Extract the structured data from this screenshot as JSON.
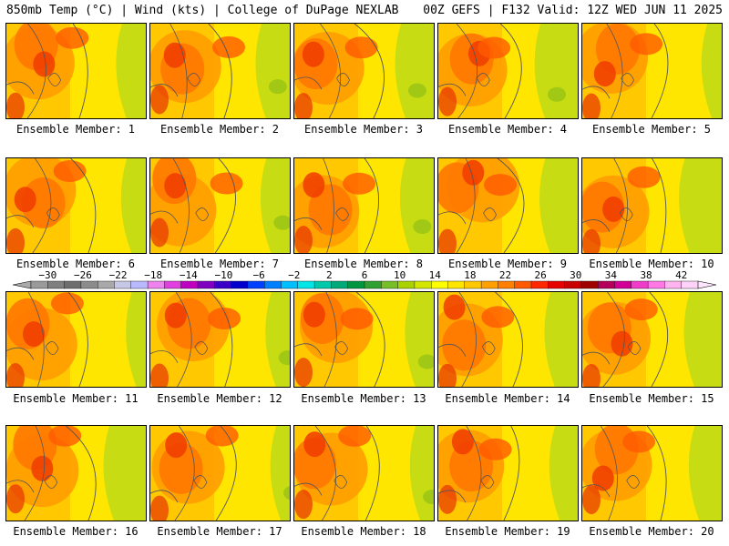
{
  "header": {
    "left": "850mb Temp (°C) | Wind (kts) | College of DuPage NEXLAB",
    "right": "00Z GEFS | F132 Valid: 12Z WED JUN 11 2025"
  },
  "colorbar": {
    "labels": [
      "−30",
      "−26",
      "−22",
      "−18",
      "−14",
      "−10",
      "−6",
      "−2",
      "2",
      "6",
      "10",
      "14",
      "18",
      "22",
      "26",
      "30",
      "34",
      "38",
      "42"
    ],
    "colors": [
      "#9a9a9a",
      "#808080",
      "#6e6e6e",
      "#8c8c8c",
      "#a9a9a9",
      "#c7c7e6",
      "#b9b9ff",
      "#ee82ee",
      "#e040e0",
      "#c000c0",
      "#8000c0",
      "#3b00c8",
      "#0000cd",
      "#0040ff",
      "#0080ff",
      "#00bfff",
      "#00e5e5",
      "#00c8aa",
      "#00aa78",
      "#009640",
      "#30a030",
      "#78be28",
      "#aad200",
      "#d2e600",
      "#ffff00",
      "#ffe600",
      "#ffc800",
      "#ffa000",
      "#ff8000",
      "#ff5a00",
      "#ff2800",
      "#e60000",
      "#c80000",
      "#a00000",
      "#b4005a",
      "#d20096",
      "#f03cc8",
      "#ff78e6",
      "#ffb4f0",
      "#ffd2fa"
    ]
  },
  "members": [
    {
      "label": "Ensemble Member: 1"
    },
    {
      "label": "Ensemble Member: 2"
    },
    {
      "label": "Ensemble Member: 3"
    },
    {
      "label": "Ensemble Member: 4"
    },
    {
      "label": "Ensemble Member: 5"
    },
    {
      "label": "Ensemble Member: 6"
    },
    {
      "label": "Ensemble Member: 7"
    },
    {
      "label": "Ensemble Member: 8"
    },
    {
      "label": "Ensemble Member: 9"
    },
    {
      "label": "Ensemble Member: 10"
    },
    {
      "label": "Ensemble Member: 11"
    },
    {
      "label": "Ensemble Member: 12"
    },
    {
      "label": "Ensemble Member: 13"
    },
    {
      "label": "Ensemble Member: 14"
    },
    {
      "label": "Ensemble Member: 15"
    },
    {
      "label": "Ensemble Member: 16"
    },
    {
      "label": "Ensemble Member: 17"
    },
    {
      "label": "Ensemble Member: 18"
    },
    {
      "label": "Ensemble Member: 19"
    },
    {
      "label": "Ensemble Member: 20"
    }
  ]
}
